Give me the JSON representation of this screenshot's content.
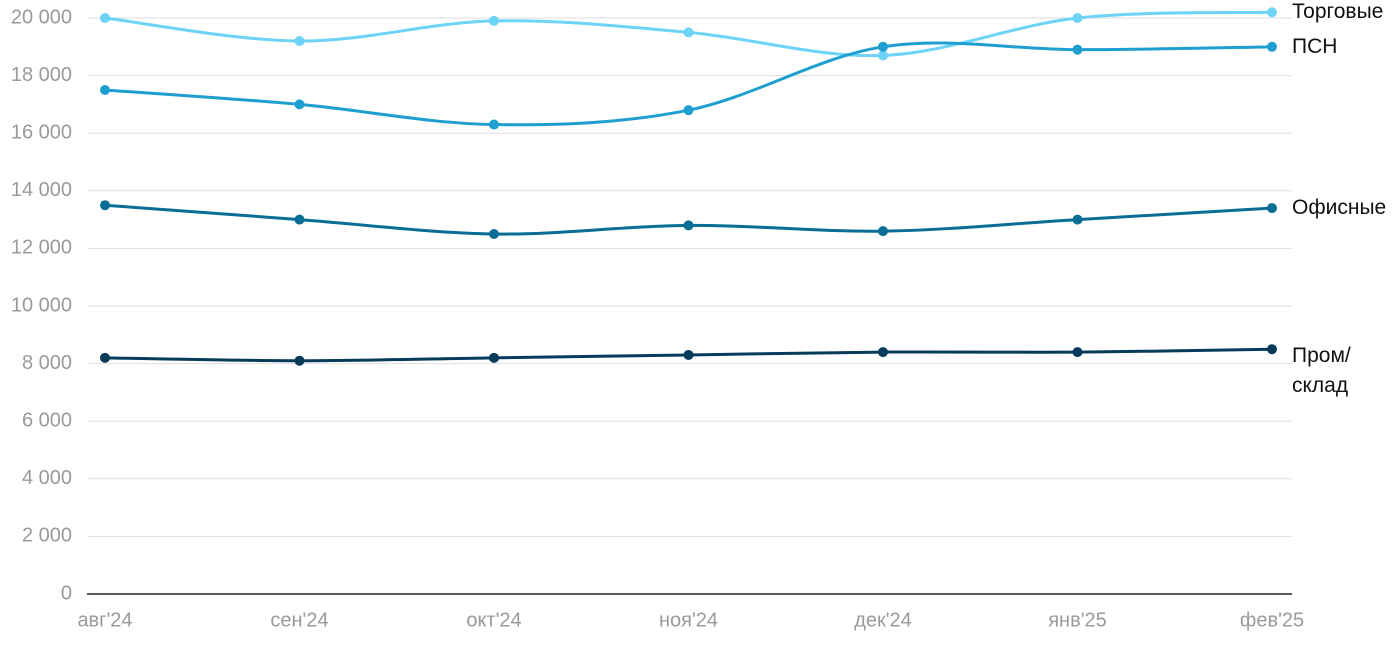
{
  "chart_data": {
    "type": "line",
    "categories": [
      "авг'24",
      "сен'24",
      "окт'24",
      "ноя'24",
      "дек'24",
      "янв'25",
      "фев'25"
    ],
    "series": [
      {
        "name": "Торговые",
        "color": "#6dd3f7",
        "values": [
          20000,
          19200,
          19900,
          19500,
          18700,
          20000,
          20200
        ]
      },
      {
        "name": "ПСН",
        "color": "#1f9fd0",
        "values": [
          17500,
          17000,
          16300,
          16800,
          19000,
          18900,
          19000
        ]
      },
      {
        "name": "Офисные",
        "color": "#0a6d96",
        "values": [
          13500,
          13000,
          12500,
          12800,
          12600,
          13000,
          13400
        ]
      },
      {
        "name": "Пром/ склад",
        "color": "#073b5c",
        "values": [
          8200,
          8100,
          8200,
          8300,
          8400,
          8400,
          8500
        ]
      }
    ],
    "ylim": [
      0,
      20000
    ],
    "yticks": [
      0,
      {
        "value": 2000,
        "label": "2 000"
      },
      {
        "value": 4000,
        "label": "4 000"
      },
      {
        "value": 6000,
        "label": "6 000"
      },
      {
        "value": 8000,
        "label": "8 000"
      },
      {
        "value": 10000,
        "label": "10 000"
      },
      {
        "value": 12000,
        "label": "12 000"
      },
      {
        "value": 14000,
        "label": "14 000"
      },
      {
        "value": 16000,
        "label": "16 000"
      },
      {
        "value": 18000,
        "label": "18 000"
      },
      {
        "value": 20000,
        "label": "20 000"
      }
    ],
    "grid": true
  }
}
